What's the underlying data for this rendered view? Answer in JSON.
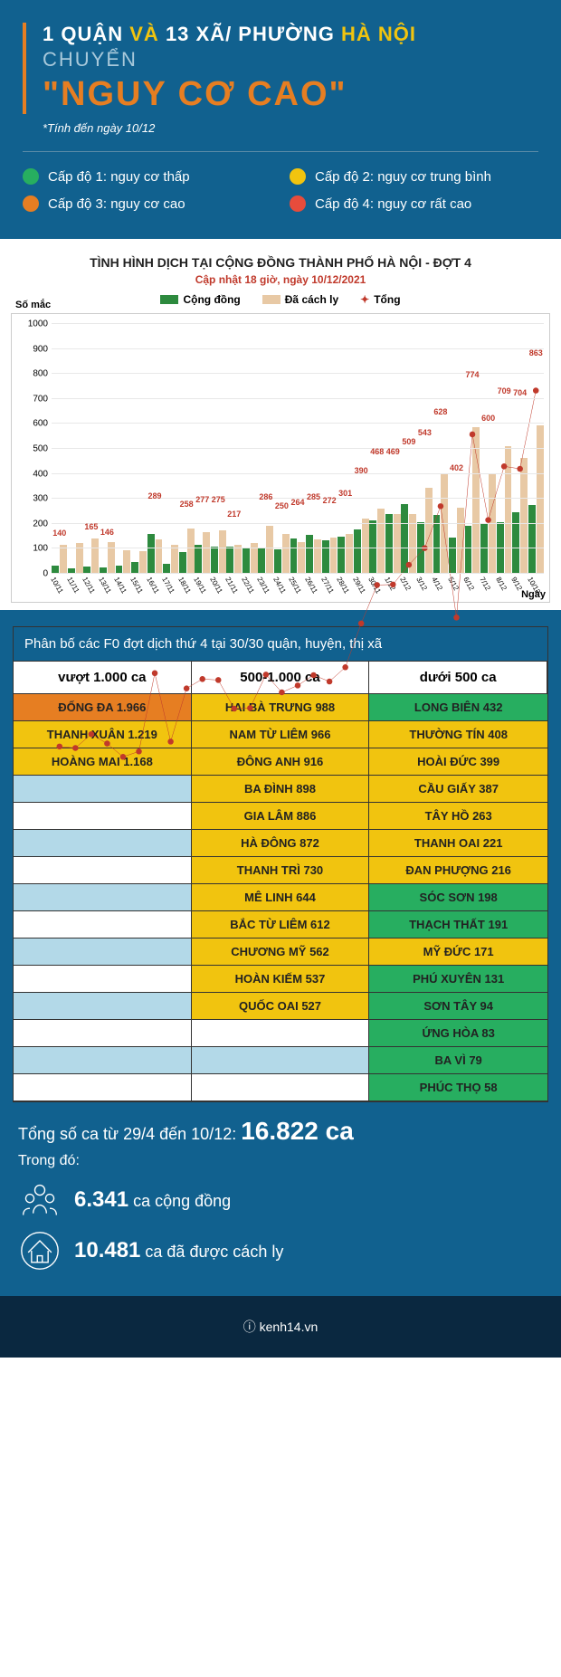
{
  "header": {
    "line1_pre": "1 QUẬN ",
    "line1_mid": "VÀ ",
    "line1_post": "13 XÃ/ PHƯỜNG ",
    "line1_end": "HÀ NỘI",
    "line2": "CHUYỂN",
    "line3": "\"NGUY CƠ CAO\"",
    "subnote": "*Tính đến ngày 10/12"
  },
  "legend": [
    {
      "color": "#27ae60",
      "label": "Cấp độ 1: nguy cơ thấp"
    },
    {
      "color": "#f1c40f",
      "label": "Cấp độ 2: nguy cơ trung bình"
    },
    {
      "color": "#e67e22",
      "label": "Cấp độ 3: nguy cơ cao"
    },
    {
      "color": "#e74c3c",
      "label": "Cấp độ 4: nguy cơ rất cao"
    }
  ],
  "chart": {
    "title": "TÌNH HÌNH DỊCH TẠI CỘNG ĐỒNG THÀNH PHỐ HÀ NỘI - ĐỢT 4",
    "subtitle": "Cập nhật 18 giờ, ngày 10/12/2021",
    "legend": {
      "community": {
        "label": "Cộng đồng",
        "color": "#2d8a3e"
      },
      "isolated": {
        "label": "Đã cách ly",
        "color": "#e8c9a5"
      },
      "total": {
        "label": "Tổng",
        "color": "#c0392b"
      }
    },
    "ylabel": "Số mắc",
    "xlabel": "Ngày",
    "ymax": 1000,
    "yticks": [
      0,
      100,
      200,
      300,
      400,
      500,
      600,
      700,
      800,
      900,
      1000
    ],
    "labeled_points": [
      140,
      165,
      146,
      289,
      258,
      277,
      275,
      217,
      286,
      250,
      264,
      285,
      272,
      301,
      390,
      468,
      469,
      509,
      543,
      628,
      774,
      402,
      600,
      709,
      704,
      863
    ],
    "data": [
      {
        "date": "10/11",
        "c": 28,
        "i": 112,
        "t": 140
      },
      {
        "date": "11/11",
        "c": 19,
        "i": 118,
        "t": 137
      },
      {
        "date": "12/11",
        "c": 27,
        "i": 138,
        "t": 165
      },
      {
        "date": "13/11",
        "c": 23,
        "i": 123,
        "t": 146
      },
      {
        "date": "14/11",
        "c": 28,
        "i": 91,
        "t": 119
      },
      {
        "date": "15/11",
        "c": 42,
        "i": 88,
        "t": 130
      },
      {
        "date": "16/11",
        "c": 155,
        "i": 134,
        "t": 289
      },
      {
        "date": "17/11",
        "c": 38,
        "i": 112,
        "t": 150
      },
      {
        "date": "18/11",
        "c": 82,
        "i": 176,
        "t": 258
      },
      {
        "date": "19/11",
        "c": 114,
        "i": 163,
        "t": 277
      },
      {
        "date": "20/11",
        "c": 104,
        "i": 171,
        "t": 275
      },
      {
        "date": "21/11",
        "c": 106,
        "i": 111,
        "t": 217
      },
      {
        "date": "22/11",
        "c": 100,
        "i": 118,
        "t": 218
      },
      {
        "date": "23/11",
        "c": 98,
        "i": 188,
        "t": 286
      },
      {
        "date": "24/11",
        "c": 95,
        "i": 155,
        "t": 250
      },
      {
        "date": "25/11",
        "c": 139,
        "i": 125,
        "t": 264
      },
      {
        "date": "26/11",
        "c": 152,
        "i": 133,
        "t": 285
      },
      {
        "date": "27/11",
        "c": 131,
        "i": 141,
        "t": 272
      },
      {
        "date": "28/11",
        "c": 144,
        "i": 157,
        "t": 301
      },
      {
        "date": "29/11",
        "c": 174,
        "i": 216,
        "t": 390
      },
      {
        "date": "30/11",
        "c": 211,
        "i": 257,
        "t": 468
      },
      {
        "date": "1/12",
        "c": 234,
        "i": 235,
        "t": 469
      },
      {
        "date": "2/12",
        "c": 274,
        "i": 235,
        "t": 509
      },
      {
        "date": "3/12",
        "c": 202,
        "i": 341,
        "t": 543
      },
      {
        "date": "4/12",
        "c": 233,
        "i": 395,
        "t": 628
      },
      {
        "date": "5/12",
        "c": 141,
        "i": 261,
        "t": 402
      },
      {
        "date": "6/12",
        "c": 190,
        "i": 584,
        "t": 774
      },
      {
        "date": "7/12",
        "c": 200,
        "i": 400,
        "t": 600
      },
      {
        "date": "8/12",
        "c": 202,
        "i": 507,
        "t": 709
      },
      {
        "date": "9/12",
        "c": 243,
        "i": 461,
        "t": 704
      },
      {
        "date": "10/12",
        "c": 272,
        "i": 591,
        "t": 863
      }
    ]
  },
  "table": {
    "heading": "Phân bố các F0 đợt dịch thứ 4 tại 30/30 quận, huyện, thị xã",
    "columns": [
      {
        "label": "vượt 1.000 ca"
      },
      {
        "label": "500-1.000 ca"
      },
      {
        "label": "dưới 500 ca"
      }
    ],
    "colors": {
      "orange": "#e67e22",
      "yellow": "#f1c40f",
      "green": "#27ae60",
      "stripe": "#b3d9e8",
      "white": "#ffffff"
    },
    "col1": [
      {
        "name": "ĐỐNG ĐA",
        "val": "1.966",
        "bg": "orange"
      },
      {
        "name": "THANH XUÂN",
        "val": "1.219",
        "bg": "yellow"
      },
      {
        "name": "HOÀNG MAI",
        "val": "1.168",
        "bg": "yellow"
      }
    ],
    "col2": [
      {
        "name": "HAI BÀ TRƯNG",
        "val": "988",
        "bg": "yellow"
      },
      {
        "name": "NAM TỪ LIÊM",
        "val": "966",
        "bg": "yellow"
      },
      {
        "name": "ĐÔNG ANH",
        "val": "916",
        "bg": "yellow"
      },
      {
        "name": "BA ĐÌNH",
        "val": "898",
        "bg": "yellow"
      },
      {
        "name": "GIA LÂM",
        "val": "886",
        "bg": "yellow"
      },
      {
        "name": "HÀ ĐÔNG",
        "val": "872",
        "bg": "yellow"
      },
      {
        "name": "THANH TRÌ",
        "val": "730",
        "bg": "yellow"
      },
      {
        "name": "MÊ LINH",
        "val": "644",
        "bg": "yellow"
      },
      {
        "name": "BẮC TỪ LIÊM",
        "val": "612",
        "bg": "yellow"
      },
      {
        "name": "CHƯƠNG MỸ",
        "val": "562",
        "bg": "yellow"
      },
      {
        "name": "HOÀN KIẾM",
        "val": "537",
        "bg": "yellow"
      },
      {
        "name": "QUỐC OAI",
        "val": "527",
        "bg": "yellow"
      }
    ],
    "col3": [
      {
        "name": "LONG BIÊN",
        "val": "432",
        "bg": "green"
      },
      {
        "name": "THƯỜNG TÍN",
        "val": "408",
        "bg": "yellow"
      },
      {
        "name": "HOÀI ĐỨC",
        "val": "399",
        "bg": "yellow"
      },
      {
        "name": "CẦU GIẤY",
        "val": "387",
        "bg": "yellow"
      },
      {
        "name": "TÂY HỒ",
        "val": "263",
        "bg": "yellow"
      },
      {
        "name": "THANH OAI",
        "val": "221",
        "bg": "yellow"
      },
      {
        "name": "ĐAN PHƯỢNG",
        "val": "216",
        "bg": "yellow"
      },
      {
        "name": "SÓC SƠN",
        "val": "198",
        "bg": "green"
      },
      {
        "name": "THẠCH THẤT",
        "val": "191",
        "bg": "green"
      },
      {
        "name": "MỸ ĐỨC",
        "val": "171",
        "bg": "yellow"
      },
      {
        "name": "PHÚ XUYÊN",
        "val": "131",
        "bg": "green"
      },
      {
        "name": "SƠN TÂY",
        "val": "94",
        "bg": "green"
      },
      {
        "name": "ỨNG HÒA",
        "val": "83",
        "bg": "green"
      },
      {
        "name": "BA VÌ",
        "val": "79",
        "bg": "green"
      },
      {
        "name": "PHÚC THỌ",
        "val": "58",
        "bg": "green"
      }
    ],
    "summary": {
      "total_label": "Tổng số ca từ 29/4 đến 10/12: ",
      "total_value": "16.822 ca",
      "inthat": "Trong đó:",
      "community_n": "6.341",
      "community_t": " ca cộng đồng",
      "isolated_n": "10.481",
      "isolated_t": " ca đã được cách ly"
    }
  },
  "footer": "kenh14.vn"
}
